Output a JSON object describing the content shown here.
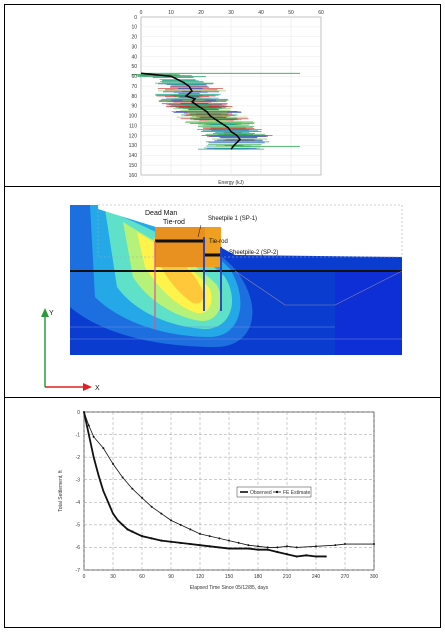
{
  "figure1": {
    "x_ticks": [
      "0",
      "10",
      "20",
      "30",
      "40",
      "50",
      "60"
    ],
    "y_ticks": [
      "0",
      "10",
      "20",
      "30",
      "40",
      "50",
      "60",
      "70",
      "80",
      "90",
      "100",
      "110",
      "120",
      "130",
      "140",
      "150",
      "160"
    ],
    "xlabel": "Energy (kJ)",
    "chart_data": {
      "type": "line",
      "xlabel": "Energy (kJ)",
      "xlim": [
        0,
        60
      ],
      "ylim": [
        0,
        160
      ],
      "y_reversed": true,
      "series": [
        {
          "x": [
            0,
            10,
            14,
            16,
            17,
            15,
            18,
            17,
            19,
            20,
            22,
            23,
            25,
            27,
            29,
            30,
            32,
            33,
            31,
            30
          ],
          "y": [
            57,
            60,
            66,
            70,
            75,
            80,
            83,
            86,
            90,
            92,
            96,
            100,
            104,
            108,
            112,
            116,
            120,
            124,
            130,
            134
          ]
        }
      ]
    }
  },
  "figure2": {
    "labels": {
      "dead_man": "Dead Man",
      "tie_rod_1": "Tie-rod",
      "sheetpile_1": "Sheetpile 1  (SP-1)",
      "tie_rod_2": "Tie-rod",
      "sheetpile_2": "Sheetpile-2 (SP-2)"
    },
    "axis_y": "Y",
    "axis_x": "X"
  },
  "figure3": {
    "ylabel": "Total Settlement, ft",
    "xlabel": "Elapsed Time Since 05/12/85, days",
    "legend": [
      "Observed",
      "FE Estimate"
    ],
    "x_ticks": [
      "0",
      "30",
      "60",
      "90",
      "120",
      "150",
      "180",
      "210",
      "240",
      "270",
      "300"
    ],
    "y_ticks": [
      "0",
      "-1",
      "-2",
      "-3",
      "-4",
      "-5",
      "-6",
      "-7"
    ],
    "chart_data": {
      "type": "line",
      "xlabel": "Elapsed Time Since 05/12/85, days",
      "ylabel": "Total Settlement, ft",
      "xlim": [
        0,
        300
      ],
      "ylim": [
        -7,
        0
      ],
      "series": [
        {
          "name": "Observed",
          "x": [
            0,
            3,
            6,
            10,
            15,
            20,
            25,
            30,
            35,
            40,
            45,
            50,
            60,
            70,
            80,
            90,
            100,
            110,
            120,
            130,
            140,
            150,
            160,
            170,
            180,
            190,
            200,
            210,
            220,
            230,
            240,
            250
          ],
          "y": [
            0,
            -0.6,
            -1.2,
            -2.0,
            -2.8,
            -3.5,
            -4.0,
            -4.5,
            -4.8,
            -5.0,
            -5.2,
            -5.3,
            -5.5,
            -5.6,
            -5.7,
            -5.75,
            -5.8,
            -5.85,
            -5.9,
            -5.95,
            -6.0,
            -6.05,
            -6.05,
            -6.05,
            -6.1,
            -6.1,
            -6.2,
            -6.3,
            -6.4,
            -6.35,
            -6.4,
            -6.4
          ]
        },
        {
          "name": "FE Estimate",
          "x": [
            0,
            5,
            10,
            20,
            30,
            40,
            50,
            60,
            70,
            80,
            90,
            100,
            110,
            120,
            130,
            140,
            150,
            160,
            170,
            180,
            190,
            200,
            210,
            220,
            240,
            260,
            270,
            300
          ],
          "y": [
            0,
            -0.6,
            -1.1,
            -1.6,
            -2.3,
            -2.9,
            -3.4,
            -3.8,
            -4.2,
            -4.5,
            -4.8,
            -5.0,
            -5.2,
            -5.4,
            -5.5,
            -5.6,
            -5.7,
            -5.8,
            -5.9,
            -5.95,
            -6.0,
            -6.0,
            -5.95,
            -6.0,
            -5.95,
            -5.9,
            -5.85,
            -5.85
          ]
        }
      ]
    }
  }
}
